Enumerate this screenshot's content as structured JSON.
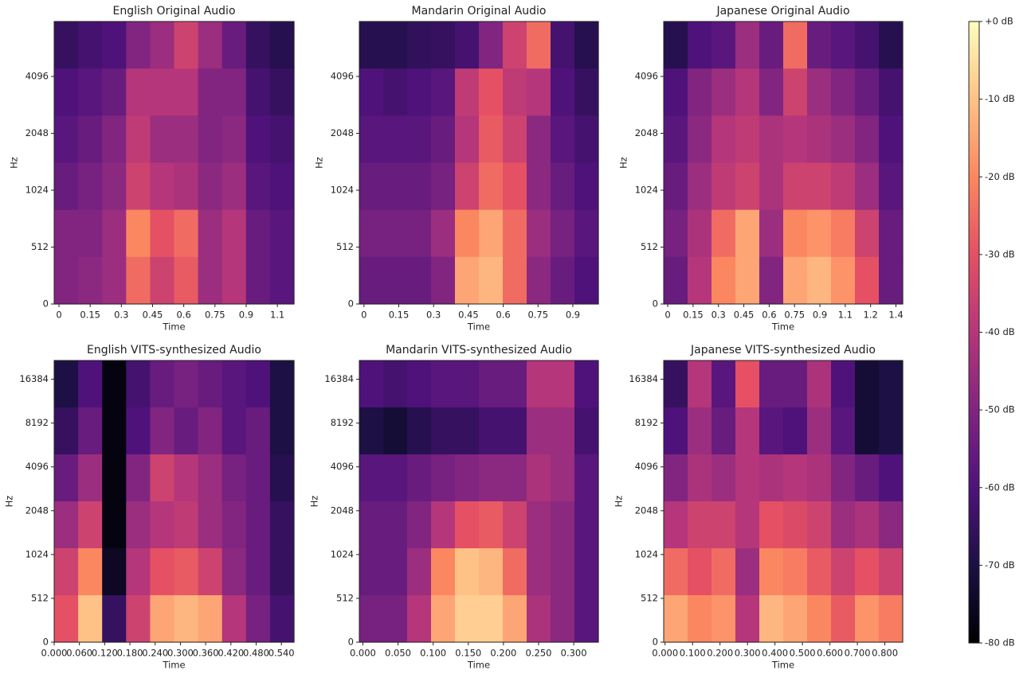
{
  "chart_data": [
    {
      "type": "heatmap",
      "title": "English Original Audio",
      "xlabel": "Time",
      "ylabel": "Hz",
      "cmap": "magma",
      "zlim": [
        -80,
        0
      ],
      "xlim": [
        -0.023,
        1.13
      ],
      "xticks": [
        0,
        0.15,
        0.3,
        0.45,
        0.6,
        0.75,
        0.9,
        {
          "value": 1.05,
          "label": "1.1"
        }
      ],
      "ylim": [
        0,
        8000
      ],
      "yticks": [
        0,
        512,
        1024,
        2048,
        4096
      ],
      "y_scale": "symlog",
      "y_linthresh": 512,
      "y_logbase": 2,
      "z": [
        [
          -65,
          -62,
          -60,
          -50,
          -45,
          -35,
          -45,
          -55,
          -65,
          -68
        ],
        [
          -60,
          -58,
          -55,
          -40,
          -40,
          -40,
          -50,
          -50,
          -62,
          -65
        ],
        [
          -58,
          -55,
          -50,
          -38,
          -45,
          -45,
          -50,
          -48,
          -60,
          -62
        ],
        [
          -55,
          -52,
          -48,
          -35,
          -40,
          -42,
          -48,
          -45,
          -58,
          -60
        ],
        [
          -50,
          -50,
          -45,
          -20,
          -30,
          -25,
          -45,
          -40,
          -55,
          -58
        ],
        [
          -50,
          -48,
          -45,
          -25,
          -35,
          -28,
          -45,
          -40,
          -55,
          -58
        ]
      ]
    },
    {
      "type": "heatmap",
      "title": "Mandarin Original Audio",
      "xlabel": "Time",
      "ylabel": "Hz",
      "cmap": "magma",
      "zlim": [
        -80,
        0
      ],
      "xlim": [
        -0.02,
        1.01
      ],
      "xticks": [
        0,
        0.15,
        0.3,
        0.45,
        0.6,
        0.75,
        0.9
      ],
      "ylim": [
        0,
        8000
      ],
      "yticks": [
        0,
        512,
        1024,
        2048,
        4096
      ],
      "y_scale": "symlog",
      "y_linthresh": 512,
      "y_logbase": 2,
      "z": [
        [
          -68,
          -68,
          -66,
          -65,
          -62,
          -50,
          -35,
          -25,
          -62,
          -68
        ],
        [
          -60,
          -62,
          -60,
          -58,
          -38,
          -30,
          -38,
          -40,
          -60,
          -65
        ],
        [
          -58,
          -58,
          -58,
          -55,
          -40,
          -28,
          -35,
          -48,
          -58,
          -62
        ],
        [
          -55,
          -55,
          -55,
          -52,
          -35,
          -25,
          -30,
          -48,
          -55,
          -60
        ],
        [
          -52,
          -52,
          -52,
          -45,
          -20,
          -15,
          -25,
          -45,
          -52,
          -58
        ],
        [
          -55,
          -55,
          -55,
          -50,
          -15,
          -12,
          -25,
          -48,
          -55,
          -60
        ]
      ]
    },
    {
      "type": "heatmap",
      "title": "Japanese Original Audio",
      "xlabel": "Time",
      "ylabel": "Hz",
      "cmap": "magma",
      "zlim": [
        -80,
        0
      ],
      "xlim": [
        -0.024,
        1.39
      ],
      "xticks": [
        0,
        0.15,
        0.3,
        0.45,
        0.6,
        0.75,
        0.9,
        {
          "value": 1.05,
          "label": "1.1"
        },
        1.2,
        {
          "value": 1.35,
          "label": "1.4"
        }
      ],
      "ylim": [
        0,
        8000
      ],
      "yticks": [
        0,
        512,
        1024,
        2048,
        4096
      ],
      "y_scale": "symlog",
      "y_linthresh": 512,
      "y_logbase": 2,
      "z": [
        [
          -68,
          -60,
          -58,
          -45,
          -55,
          -25,
          -55,
          -58,
          -62,
          -68
        ],
        [
          -60,
          -50,
          -45,
          -40,
          -50,
          -35,
          -45,
          -50,
          -55,
          -62
        ],
        [
          -58,
          -48,
          -40,
          -38,
          -42,
          -40,
          -42,
          -45,
          -50,
          -60
        ],
        [
          -55,
          -45,
          -38,
          -35,
          -42,
          -35,
          -35,
          -38,
          -45,
          -58
        ],
        [
          -52,
          -42,
          -25,
          -15,
          -45,
          -20,
          -18,
          -22,
          -35,
          -55
        ],
        [
          -55,
          -40,
          -20,
          -15,
          -50,
          -15,
          -12,
          -18,
          -30,
          -55
        ]
      ]
    },
    {
      "type": "heatmap",
      "title": "English VITS-synthesized Audio",
      "xlabel": "Time",
      "ylabel": "Hz",
      "cmap": "magma",
      "zlim": [
        -80,
        0
      ],
      "xlim": [
        0,
        0.57
      ],
      "xticks": [
        {
          "value": 0,
          "label": "0.000"
        },
        {
          "value": 0.06,
          "label": "0.060"
        },
        {
          "value": 0.12,
          "label": "0.120"
        },
        {
          "value": 0.18,
          "label": "0.180"
        },
        {
          "value": 0.24,
          "label": "0.240"
        },
        {
          "value": 0.3,
          "label": "0.300"
        },
        {
          "value": 0.36,
          "label": "0.360"
        },
        {
          "value": 0.42,
          "label": "0.420"
        },
        {
          "value": 0.48,
          "label": "0.480"
        },
        {
          "value": 0.54,
          "label": "0.540"
        }
      ],
      "ylim": [
        0,
        22050
      ],
      "yticks": [
        0,
        512,
        1024,
        2048,
        4096,
        8192,
        16384
      ],
      "y_scale": "symlog",
      "y_linthresh": 512,
      "y_logbase": 2,
      "z": [
        [
          -70,
          -60,
          -78,
          -62,
          -55,
          -52,
          -55,
          -58,
          -60,
          -70
        ],
        [
          -65,
          -55,
          -78,
          -60,
          -50,
          -55,
          -50,
          -58,
          -55,
          -70
        ],
        [
          -55,
          -45,
          -78,
          -50,
          -35,
          -40,
          -45,
          -52,
          -55,
          -68
        ],
        [
          -45,
          -35,
          -78,
          -45,
          -40,
          -38,
          -45,
          -50,
          -55,
          -65
        ],
        [
          -35,
          -20,
          -75,
          -40,
          -30,
          -28,
          -35,
          -48,
          -55,
          -65
        ],
        [
          -30,
          -10,
          -65,
          -35,
          -15,
          -12,
          -15,
          -40,
          -52,
          -62
        ]
      ]
    },
    {
      "type": "heatmap",
      "title": "Mandarin VITS-synthesized Audio",
      "xlabel": "Time",
      "ylabel": "Hz",
      "cmap": "magma",
      "zlim": [
        -80,
        0
      ],
      "xlim": [
        -0.005,
        0.335
      ],
      "xticks": [
        {
          "value": 0,
          "label": "0.000"
        },
        {
          "value": 0.05,
          "label": "0.050"
        },
        {
          "value": 0.1,
          "label": "0.100"
        },
        {
          "value": 0.15,
          "label": "0.150"
        },
        {
          "value": 0.2,
          "label": "0.200"
        },
        {
          "value": 0.25,
          "label": "0.250"
        },
        {
          "value": 0.3,
          "label": "0.300"
        }
      ],
      "ylim": [
        0,
        22050
      ],
      "yticks": [
        0,
        512,
        1024,
        2048,
        4096,
        8192,
        16384
      ],
      "y_scale": "symlog",
      "y_linthresh": 512,
      "y_logbase": 2,
      "z": [
        [
          -60,
          -62,
          -60,
          -58,
          -58,
          -55,
          -55,
          -40,
          -40,
          -60
        ],
        [
          -70,
          -72,
          -68,
          -65,
          -65,
          -62,
          -62,
          -45,
          -45,
          -62
        ],
        [
          -58,
          -58,
          -55,
          -52,
          -50,
          -48,
          -48,
          -42,
          -45,
          -58
        ],
        [
          -55,
          -55,
          -50,
          -40,
          -30,
          -28,
          -35,
          -45,
          -48,
          -58
        ],
        [
          -55,
          -55,
          -45,
          -20,
          -10,
          -12,
          -25,
          -45,
          -48,
          -58
        ],
        [
          -52,
          -52,
          -40,
          -15,
          -8,
          -8,
          -15,
          -42,
          -48,
          -58
        ]
      ]
    },
    {
      "type": "heatmap",
      "title": "Japanese VITS-synthesized Audio",
      "xlabel": "Time",
      "ylabel": "Hz",
      "cmap": "magma",
      "zlim": [
        -80,
        0
      ],
      "xlim": [
        -0.005,
        0.865
      ],
      "xticks": [
        {
          "value": 0,
          "label": "0.000"
        },
        {
          "value": 0.1,
          "label": "0.100"
        },
        {
          "value": 0.2,
          "label": "0.200"
        },
        {
          "value": 0.3,
          "label": "0.300"
        },
        {
          "value": 0.4,
          "label": "0.400"
        },
        {
          "value": 0.5,
          "label": "0.500"
        },
        {
          "value": 0.6,
          "label": "0.600"
        },
        {
          "value": 0.7,
          "label": "0.700"
        },
        {
          "value": 0.8,
          "label": "0.800"
        }
      ],
      "ylim": [
        0,
        22050
      ],
      "yticks": [
        0,
        512,
        1024,
        2048,
        4096,
        8192,
        16384
      ],
      "y_scale": "symlog",
      "y_linthresh": 512,
      "y_logbase": 2,
      "z": [
        [
          -65,
          -40,
          -58,
          -30,
          -55,
          -55,
          -42,
          -60,
          -72,
          -70
        ],
        [
          -60,
          -45,
          -55,
          -40,
          -58,
          -60,
          -45,
          -58,
          -72,
          -70
        ],
        [
          -50,
          -42,
          -45,
          -40,
          -42,
          -40,
          -42,
          -50,
          -55,
          -60
        ],
        [
          -40,
          -35,
          -35,
          -40,
          -30,
          -32,
          -35,
          -45,
          -42,
          -48
        ],
        [
          -25,
          -30,
          -25,
          -45,
          -20,
          -22,
          -28,
          -35,
          -30,
          -35
        ],
        [
          -15,
          -20,
          -18,
          -40,
          -12,
          -15,
          -20,
          -28,
          -18,
          -22
        ]
      ]
    },
    {
      "type": "colorbar",
      "cmap": "magma",
      "zlim": [
        -80,
        0
      ],
      "zticks": [
        {
          "value": 0,
          "label": "+0 dB"
        },
        {
          "value": -10,
          "label": "-10 dB"
        },
        {
          "value": -20,
          "label": "-20 dB"
        },
        {
          "value": -30,
          "label": "-30 dB"
        },
        {
          "value": -40,
          "label": "-40 dB"
        },
        {
          "value": -50,
          "label": "-50 dB"
        },
        {
          "value": -60,
          "label": "-60 dB"
        },
        {
          "value": -70,
          "label": "-70 dB"
        },
        {
          "value": -80,
          "label": "-80 dB"
        }
      ]
    }
  ]
}
